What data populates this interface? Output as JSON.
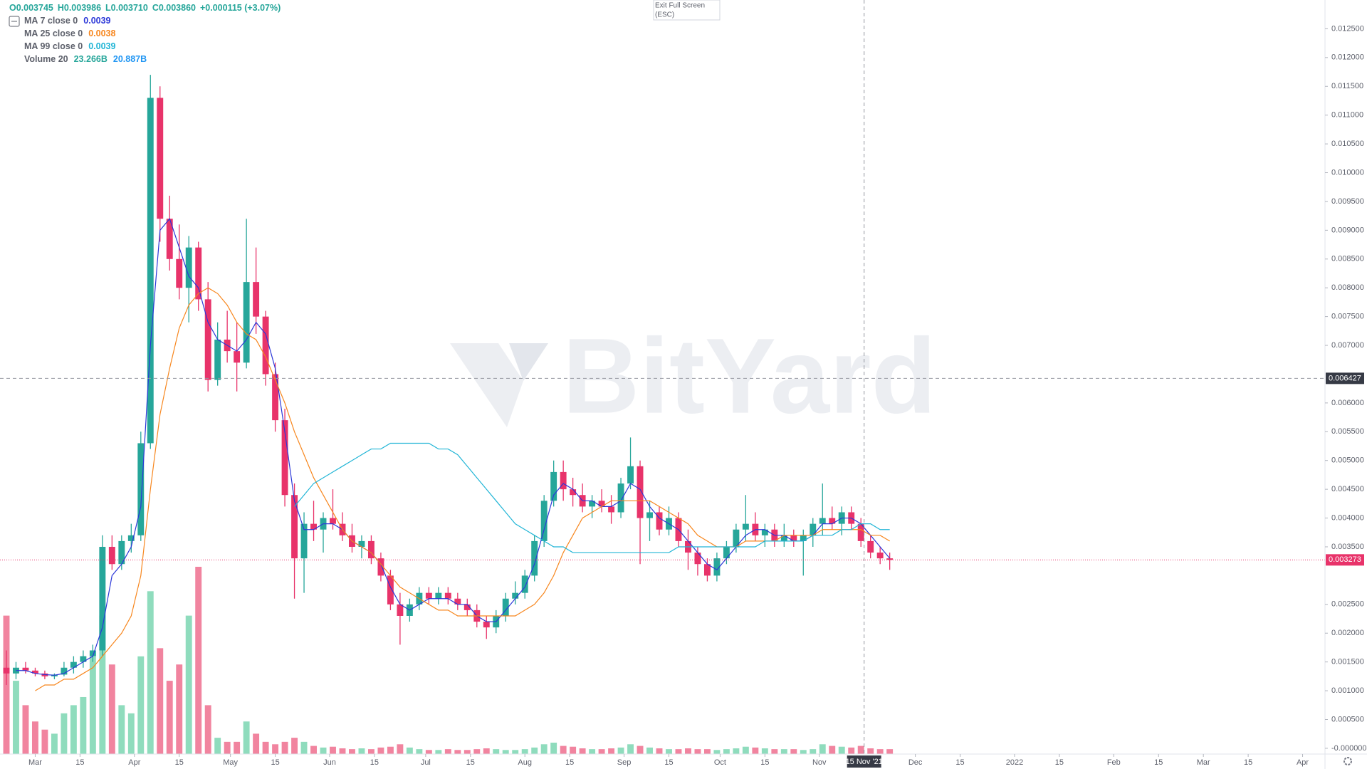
{
  "chart_data": {
    "type": "candlestick",
    "watermark": "BitYard",
    "tooltip": [
      "Exit Full Screen",
      "(ESC)"
    ],
    "header": [
      "O0.003745",
      "H0.003986",
      "L0.003710",
      "C0.003860",
      "+0.000115 (+3.07%)"
    ],
    "up_color": "#26a69a",
    "down_color": "#e8336a",
    "volume_up_color": "#8fdcbd",
    "volume_down_color": "#f1849f",
    "volume_name": "Volume 20",
    "volume_labels": [
      "23.266B",
      "20.887B"
    ],
    "volume_label_colors": [
      "#26a69a",
      "#2196f3"
    ],
    "xlim": [
      "2021-02-18",
      "2022-04-08"
    ],
    "ylim": [
      -0.0001,
      0.013
    ],
    "x": [
      "2021-02-20",
      "2021-02-23",
      "2021-02-26",
      "2021-03-01",
      "2021-03-04",
      "2021-03-07",
      "2021-03-10",
      "2021-03-13",
      "2021-03-16",
      "2021-03-19",
      "2021-03-22",
      "2021-03-25",
      "2021-03-28",
      "2021-03-31",
      "2021-04-03",
      "2021-04-06",
      "2021-04-09",
      "2021-04-12",
      "2021-04-15",
      "2021-04-18",
      "2021-04-21",
      "2021-04-24",
      "2021-04-27",
      "2021-04-30",
      "2021-05-03",
      "2021-05-06",
      "2021-05-09",
      "2021-05-12",
      "2021-05-15",
      "2021-05-18",
      "2021-05-21",
      "2021-05-24",
      "2021-05-27",
      "2021-05-30",
      "2021-06-02",
      "2021-06-05",
      "2021-06-08",
      "2021-06-11",
      "2021-06-14",
      "2021-06-17",
      "2021-06-20",
      "2021-06-23",
      "2021-06-26",
      "2021-06-29",
      "2021-07-02",
      "2021-07-05",
      "2021-07-08",
      "2021-07-11",
      "2021-07-14",
      "2021-07-17",
      "2021-07-20",
      "2021-07-23",
      "2021-07-26",
      "2021-07-29",
      "2021-08-01",
      "2021-08-04",
      "2021-08-07",
      "2021-08-10",
      "2021-08-13",
      "2021-08-16",
      "2021-08-19",
      "2021-08-22",
      "2021-08-25",
      "2021-08-28",
      "2021-08-31",
      "2021-09-03",
      "2021-09-06",
      "2021-09-09",
      "2021-09-12",
      "2021-09-15",
      "2021-09-18",
      "2021-09-21",
      "2021-09-24",
      "2021-09-27",
      "2021-09-30",
      "2021-10-03",
      "2021-10-06",
      "2021-10-09",
      "2021-10-12",
      "2021-10-15",
      "2021-10-18",
      "2021-10-21",
      "2021-10-24",
      "2021-10-27",
      "2021-10-30",
      "2021-11-02",
      "2021-11-05",
      "2021-11-08",
      "2021-11-11",
      "2021-11-14",
      "2021-11-17",
      "2021-11-20",
      "2021-11-23"
    ],
    "candles": [
      [
        0.0014,
        0.0017,
        0.0011,
        0.0013
      ],
      [
        0.0013,
        0.0015,
        0.0012,
        0.0014
      ],
      [
        0.0014,
        0.0015,
        0.0013,
        0.00135
      ],
      [
        0.00135,
        0.0014,
        0.00125,
        0.0013
      ],
      [
        0.0013,
        0.00135,
        0.0012,
        0.00125
      ],
      [
        0.00125,
        0.0013,
        0.0012,
        0.00128
      ],
      [
        0.00128,
        0.0015,
        0.00125,
        0.0014
      ],
      [
        0.0014,
        0.0016,
        0.0013,
        0.0015
      ],
      [
        0.0015,
        0.0017,
        0.0014,
        0.0016
      ],
      [
        0.0016,
        0.0018,
        0.0015,
        0.0017
      ],
      [
        0.0017,
        0.0037,
        0.0016,
        0.0035
      ],
      [
        0.0035,
        0.0037,
        0.0031,
        0.0032
      ],
      [
        0.0032,
        0.0037,
        0.0031,
        0.0036
      ],
      [
        0.0036,
        0.0039,
        0.0034,
        0.0037
      ],
      [
        0.0037,
        0.0055,
        0.0036,
        0.0053
      ],
      [
        0.0053,
        0.0117,
        0.0052,
        0.0113
      ],
      [
        0.0113,
        0.0115,
        0.0088,
        0.0092
      ],
      [
        0.0092,
        0.0096,
        0.0083,
        0.0085
      ],
      [
        0.0085,
        0.0091,
        0.0078,
        0.008
      ],
      [
        0.008,
        0.0089,
        0.0074,
        0.0087
      ],
      [
        0.0087,
        0.0088,
        0.0076,
        0.0078
      ],
      [
        0.0078,
        0.0081,
        0.0062,
        0.0064
      ],
      [
        0.0064,
        0.0074,
        0.0063,
        0.0071
      ],
      [
        0.0071,
        0.0076,
        0.0067,
        0.0069
      ],
      [
        0.0069,
        0.0074,
        0.0062,
        0.0067
      ],
      [
        0.0067,
        0.0092,
        0.0066,
        0.0081
      ],
      [
        0.0081,
        0.0087,
        0.0072,
        0.0075
      ],
      [
        0.0075,
        0.0076,
        0.0063,
        0.0065
      ],
      [
        0.0065,
        0.0067,
        0.0055,
        0.0057
      ],
      [
        0.0057,
        0.0059,
        0.0042,
        0.0044
      ],
      [
        0.0044,
        0.0046,
        0.0026,
        0.0033
      ],
      [
        0.0033,
        0.0041,
        0.0027,
        0.0039
      ],
      [
        0.0039,
        0.0043,
        0.0036,
        0.0038
      ],
      [
        0.0038,
        0.0041,
        0.0034,
        0.004
      ],
      [
        0.004,
        0.0045,
        0.0038,
        0.0039
      ],
      [
        0.0039,
        0.0041,
        0.0036,
        0.0037
      ],
      [
        0.0037,
        0.0039,
        0.0034,
        0.0035
      ],
      [
        0.0035,
        0.0037,
        0.0033,
        0.0036
      ],
      [
        0.0036,
        0.0037,
        0.0032,
        0.0033
      ],
      [
        0.0033,
        0.0034,
        0.0029,
        0.003
      ],
      [
        0.003,
        0.0031,
        0.0024,
        0.0025
      ],
      [
        0.0025,
        0.0027,
        0.0018,
        0.0023
      ],
      [
        0.0023,
        0.0026,
        0.0022,
        0.0025
      ],
      [
        0.0025,
        0.0028,
        0.0024,
        0.0027
      ],
      [
        0.0027,
        0.0028,
        0.0025,
        0.0026
      ],
      [
        0.0026,
        0.0028,
        0.0025,
        0.0027
      ],
      [
        0.0027,
        0.0028,
        0.0025,
        0.0026
      ],
      [
        0.0026,
        0.0027,
        0.0024,
        0.0025
      ],
      [
        0.0025,
        0.0026,
        0.0023,
        0.0024
      ],
      [
        0.0024,
        0.0025,
        0.0021,
        0.0022
      ],
      [
        0.0022,
        0.0023,
        0.0019,
        0.0021
      ],
      [
        0.0021,
        0.0024,
        0.002,
        0.0023
      ],
      [
        0.0023,
        0.0027,
        0.0022,
        0.0026
      ],
      [
        0.0026,
        0.0029,
        0.0025,
        0.0027
      ],
      [
        0.0027,
        0.0031,
        0.0026,
        0.003
      ],
      [
        0.003,
        0.0037,
        0.0029,
        0.0036
      ],
      [
        0.0036,
        0.0044,
        0.0035,
        0.0043
      ],
      [
        0.0043,
        0.005,
        0.0042,
        0.0048
      ],
      [
        0.0048,
        0.005,
        0.0043,
        0.0045
      ],
      [
        0.0045,
        0.0047,
        0.0042,
        0.0044
      ],
      [
        0.0044,
        0.0046,
        0.0041,
        0.0042
      ],
      [
        0.0042,
        0.0044,
        0.004,
        0.0043
      ],
      [
        0.0043,
        0.0045,
        0.0041,
        0.0042
      ],
      [
        0.0042,
        0.0044,
        0.0039,
        0.0041
      ],
      [
        0.0041,
        0.0047,
        0.004,
        0.0046
      ],
      [
        0.0046,
        0.0054,
        0.0045,
        0.0049
      ],
      [
        0.0049,
        0.005,
        0.0032,
        0.004
      ],
      [
        0.004,
        0.0043,
        0.0036,
        0.0041
      ],
      [
        0.0041,
        0.0042,
        0.0037,
        0.0038
      ],
      [
        0.0038,
        0.0042,
        0.0037,
        0.004
      ],
      [
        0.004,
        0.0041,
        0.0035,
        0.0036
      ],
      [
        0.0036,
        0.0038,
        0.0031,
        0.0034
      ],
      [
        0.0034,
        0.0035,
        0.003,
        0.0032
      ],
      [
        0.0032,
        0.0033,
        0.0029,
        0.003
      ],
      [
        0.003,
        0.0034,
        0.0029,
        0.0033
      ],
      [
        0.0033,
        0.0036,
        0.0032,
        0.0035
      ],
      [
        0.0035,
        0.0039,
        0.0034,
        0.0038
      ],
      [
        0.0038,
        0.0044,
        0.0036,
        0.0039
      ],
      [
        0.0039,
        0.0041,
        0.0036,
        0.0037
      ],
      [
        0.0037,
        0.0039,
        0.0035,
        0.0038
      ],
      [
        0.0038,
        0.0039,
        0.0035,
        0.0036
      ],
      [
        0.0036,
        0.0039,
        0.0035,
        0.0037
      ],
      [
        0.0037,
        0.0038,
        0.0035,
        0.0036
      ],
      [
        0.0036,
        0.0038,
        0.003,
        0.0037
      ],
      [
        0.0037,
        0.004,
        0.0035,
        0.0039
      ],
      [
        0.0039,
        0.0046,
        0.0037,
        0.004
      ],
      [
        0.004,
        0.0042,
        0.0038,
        0.0039
      ],
      [
        0.0039,
        0.0042,
        0.0037,
        0.0041
      ],
      [
        0.0041,
        0.0042,
        0.0038,
        0.0039
      ],
      [
        0.0039,
        0.004,
        0.0035,
        0.0036
      ],
      [
        0.0036,
        0.0037,
        0.0033,
        0.0034
      ],
      [
        0.0034,
        0.0035,
        0.0032,
        0.0033
      ],
      [
        0.0033,
        0.0034,
        0.0031,
        0.003273
      ]
    ],
    "volume": [
      170,
      90,
      60,
      40,
      30,
      25,
      50,
      60,
      70,
      120,
      170,
      110,
      60,
      50,
      120,
      200,
      130,
      90,
      110,
      170,
      230,
      60,
      20,
      15,
      15,
      40,
      25,
      15,
      12,
      15,
      20,
      15,
      10,
      8,
      9,
      7,
      6,
      7,
      6,
      8,
      9,
      12,
      8,
      6,
      5,
      5,
      6,
      5,
      5,
      6,
      7,
      6,
      5,
      5,
      6,
      8,
      12,
      14,
      10,
      9,
      7,
      6,
      6,
      7,
      8,
      12,
      10,
      8,
      7,
      6,
      6,
      7,
      6,
      6,
      5,
      6,
      7,
      9,
      8,
      7,
      6,
      6,
      6,
      5,
      6,
      12,
      10,
      9,
      8,
      10,
      7,
      6,
      6
    ],
    "series": [
      {
        "name": "MA 7 close 0",
        "legend_value": "0.0039",
        "color": "#2b37d8",
        "values": [
          null,
          0.00135,
          0.00135,
          0.0013,
          0.00128,
          0.00127,
          0.0013,
          0.0014,
          0.0015,
          0.0016,
          0.0021,
          0.003,
          0.0032,
          0.0035,
          0.0042,
          0.007,
          0.009,
          0.0092,
          0.0087,
          0.0082,
          0.008,
          0.0074,
          0.0071,
          0.007,
          0.0069,
          0.0071,
          0.0074,
          0.0072,
          0.0066,
          0.0055,
          0.0043,
          0.0038,
          0.0038,
          0.0039,
          0.0039,
          0.0038,
          0.0036,
          0.0035,
          0.0034,
          0.0032,
          0.0028,
          0.0025,
          0.0024,
          0.0025,
          0.0026,
          0.0026,
          0.0026,
          0.0025,
          0.0025,
          0.0023,
          0.0022,
          0.0022,
          0.0024,
          0.0026,
          0.0028,
          0.0032,
          0.0038,
          0.0044,
          0.0046,
          0.0045,
          0.0043,
          0.0043,
          0.0042,
          0.0042,
          0.0043,
          0.0046,
          0.0045,
          0.0042,
          0.004,
          0.0039,
          0.0038,
          0.0036,
          0.0034,
          0.0032,
          0.0031,
          0.0033,
          0.0035,
          0.0037,
          0.0038,
          0.0038,
          0.0037,
          0.0037,
          0.0036,
          0.0036,
          0.0037,
          0.0039,
          0.0039,
          0.004,
          0.004,
          0.0039,
          0.0037,
          0.0035,
          0.0033
        ]
      },
      {
        "name": "MA 25 close 0",
        "legend_value": "0.0038",
        "color": "#f7861d",
        "values": [
          null,
          null,
          null,
          0.001,
          0.0011,
          0.0011,
          0.0012,
          0.0012,
          0.0013,
          0.0014,
          0.0016,
          0.0018,
          0.002,
          0.0023,
          0.003,
          0.0045,
          0.0058,
          0.0066,
          0.0073,
          0.0077,
          0.0079,
          0.008,
          0.0079,
          0.0077,
          0.0074,
          0.0072,
          0.0071,
          0.0068,
          0.0064,
          0.006,
          0.0055,
          0.0051,
          0.0047,
          0.0044,
          0.0041,
          0.0038,
          0.0036,
          0.0035,
          0.0034,
          0.0032,
          0.003,
          0.0028,
          0.0027,
          0.0026,
          0.0025,
          0.0024,
          0.0024,
          0.0023,
          0.0023,
          0.0023,
          0.0023,
          0.0023,
          0.0023,
          0.0023,
          0.0024,
          0.0025,
          0.0027,
          0.003,
          0.0034,
          0.0037,
          0.004,
          0.0041,
          0.0042,
          0.0043,
          0.0043,
          0.0043,
          0.0043,
          0.0043,
          0.0042,
          0.0041,
          0.004,
          0.0039,
          0.0037,
          0.0036,
          0.0035,
          0.0035,
          0.0035,
          0.0036,
          0.0036,
          0.0036,
          0.0036,
          0.0037,
          0.0037,
          0.0037,
          0.0037,
          0.0038,
          0.0038,
          0.0038,
          0.0038,
          0.0038,
          0.0037,
          0.0037,
          0.0036
        ]
      },
      {
        "name": "MA 99 close 0",
        "legend_value": "0.0039",
        "color": "#21b5d6",
        "values": [
          null,
          null,
          null,
          null,
          null,
          null,
          null,
          null,
          null,
          null,
          null,
          null,
          null,
          null,
          null,
          null,
          null,
          null,
          null,
          null,
          null,
          null,
          null,
          null,
          null,
          null,
          null,
          null,
          null,
          null,
          0.0042,
          0.0044,
          0.0046,
          0.0047,
          0.0048,
          0.0049,
          0.005,
          0.0051,
          0.0052,
          0.0052,
          0.0053,
          0.0053,
          0.0053,
          0.0053,
          0.0053,
          0.0052,
          0.0052,
          0.0051,
          0.0049,
          0.0047,
          0.0045,
          0.0043,
          0.0041,
          0.0039,
          0.0038,
          0.0037,
          0.0036,
          0.0035,
          0.0035,
          0.0034,
          0.0034,
          0.0034,
          0.0034,
          0.0034,
          0.0034,
          0.0034,
          0.0034,
          0.0034,
          0.0034,
          0.0034,
          0.0035,
          0.0035,
          0.0035,
          0.0035,
          0.0035,
          0.0035,
          0.0035,
          0.0035,
          0.0035,
          0.0036,
          0.0036,
          0.0036,
          0.0036,
          0.0036,
          0.0037,
          0.0037,
          0.0037,
          0.0038,
          0.0038,
          0.0039,
          0.0039,
          0.0038,
          0.0038
        ]
      }
    ],
    "yticks": [
      {
        "value": 0.0125,
        "label": "0.012500"
      },
      {
        "value": 0.012,
        "label": "0.012000"
      },
      {
        "value": 0.0115,
        "label": "0.011500"
      },
      {
        "value": 0.011,
        "label": "0.011000"
      },
      {
        "value": 0.0105,
        "label": "0.010500"
      },
      {
        "value": 0.01,
        "label": "0.010000"
      },
      {
        "value": 0.0095,
        "label": "0.009500"
      },
      {
        "value": 0.009,
        "label": "0.009000"
      },
      {
        "value": 0.0085,
        "label": "0.008500"
      },
      {
        "value": 0.008,
        "label": "0.008000"
      },
      {
        "value": 0.0075,
        "label": "0.007500"
      },
      {
        "value": 0.007,
        "label": "0.007000"
      },
      {
        "value": 0.006,
        "label": "0.006000"
      },
      {
        "value": 0.0055,
        "label": "0.005500"
      },
      {
        "value": 0.005,
        "label": "0.005000"
      },
      {
        "value": 0.0045,
        "label": "0.004500"
      },
      {
        "value": 0.004,
        "label": "0.004000"
      },
      {
        "value": 0.0035,
        "label": "0.003500"
      },
      {
        "value": 0.0025,
        "label": "0.002500"
      },
      {
        "value": 0.002,
        "label": "0.002000"
      },
      {
        "value": 0.0015,
        "label": "0.001500"
      },
      {
        "value": 0.001,
        "label": "0.001000"
      },
      {
        "value": 0.0005,
        "label": "0.000500"
      },
      {
        "value": 0,
        "label": "-0.000000"
      }
    ],
    "xticks": [
      {
        "value": "2021-03-01",
        "label": "Mar"
      },
      {
        "value": "2021-03-15",
        "label": "15"
      },
      {
        "value": "2021-04-01",
        "label": "Apr"
      },
      {
        "value": "2021-04-15",
        "label": "15"
      },
      {
        "value": "2021-05-01",
        "label": "May"
      },
      {
        "value": "2021-05-15",
        "label": "15"
      },
      {
        "value": "2021-06-01",
        "label": "Jun"
      },
      {
        "value": "2021-06-15",
        "label": "15"
      },
      {
        "value": "2021-07-01",
        "label": "Jul"
      },
      {
        "value": "2021-07-15",
        "label": "15"
      },
      {
        "value": "2021-08-01",
        "label": "Aug"
      },
      {
        "value": "2021-08-15",
        "label": "15"
      },
      {
        "value": "2021-09-01",
        "label": "Sep"
      },
      {
        "value": "2021-09-15",
        "label": "15"
      },
      {
        "value": "2021-10-01",
        "label": "Oct"
      },
      {
        "value": "2021-10-15",
        "label": "15"
      },
      {
        "value": "2021-11-01",
        "label": "Nov"
      },
      {
        "value": "2021-12-01",
        "label": "Dec"
      },
      {
        "value": "2021-12-15",
        "label": "15"
      },
      {
        "value": "2022-01-01",
        "label": "2022"
      },
      {
        "value": "2022-01-15",
        "label": "15"
      },
      {
        "value": "2022-02-01",
        "label": "Feb"
      },
      {
        "value": "2022-02-15",
        "label": "15"
      },
      {
        "value": "2022-03-01",
        "label": "Mar"
      },
      {
        "value": "2022-03-15",
        "label": "15"
      },
      {
        "value": "2022-04-01",
        "label": "Apr"
      }
    ],
    "crosshair": {
      "x": {
        "value": "2021-11-15",
        "label": "15 Nov '21"
      },
      "y": 0.006427
    },
    "last_price": 0.003273
  }
}
